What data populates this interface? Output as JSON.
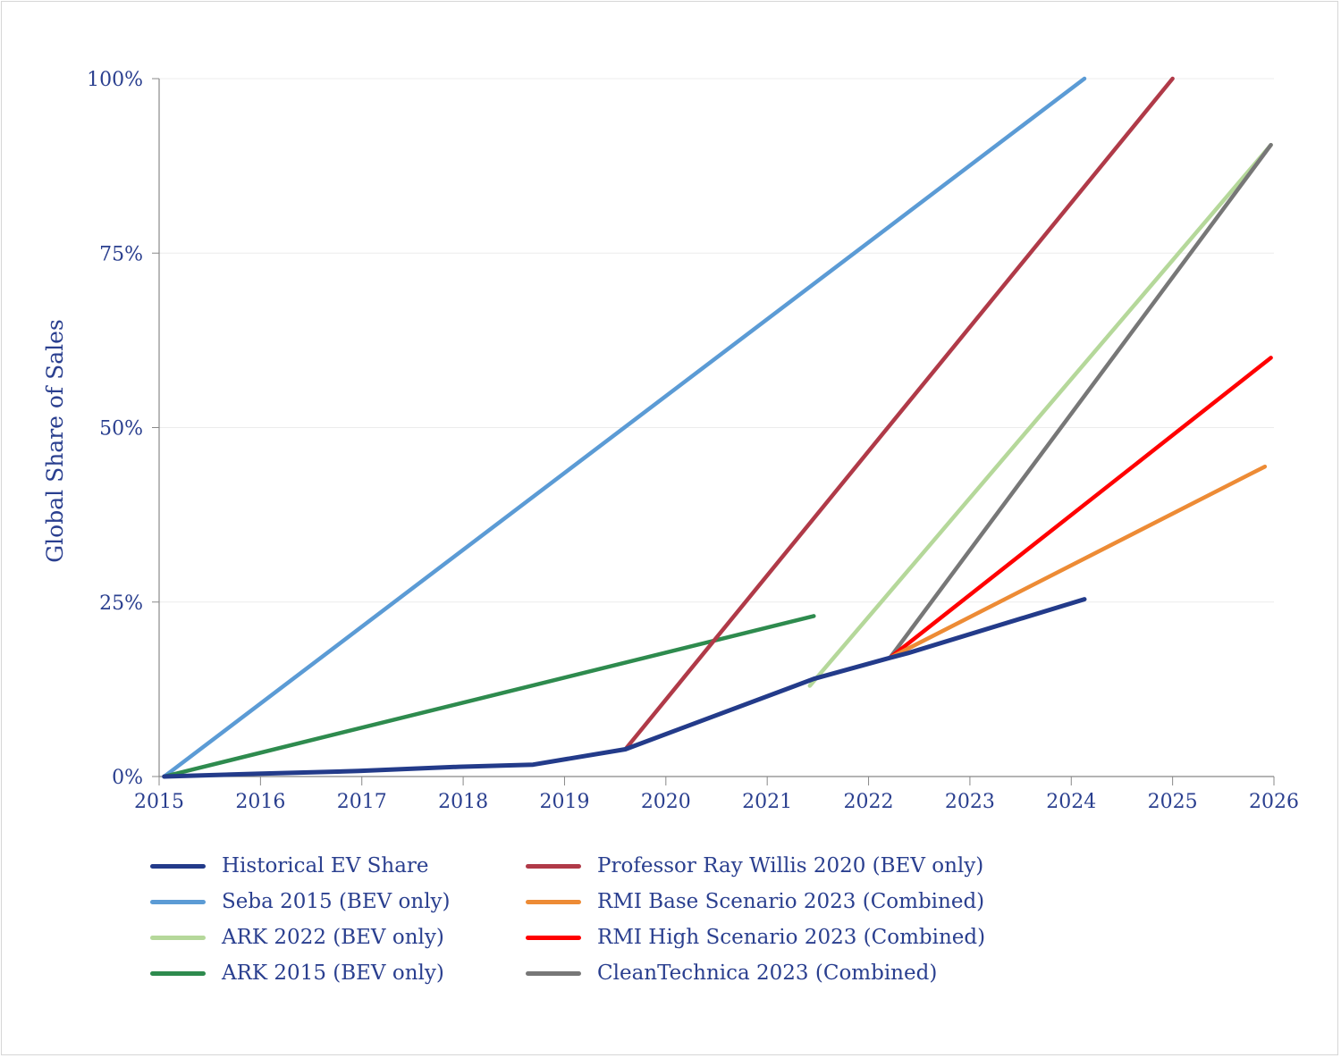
{
  "chart_data": {
    "type": "line",
    "title": "",
    "xlabel": "",
    "ylabel": "Global Share of Sales",
    "xlim": [
      2015,
      2026
    ],
    "ylim": [
      0,
      100
    ],
    "x_ticks": [
      "2015",
      "2016",
      "2017",
      "2018",
      "2019",
      "2020",
      "2021",
      "2022",
      "2023",
      "2024",
      "2025",
      "2026"
    ],
    "y_ticks": [
      "0%",
      "25%",
      "50%",
      "75%",
      "100%"
    ],
    "grid": "horizontal",
    "legend_position": "bottom",
    "series": [
      {
        "name": "Historical EV Share",
        "color": "#233b8a",
        "x": [
          2015.05,
          2015.97,
          2016.97,
          2017.96,
          2018.69,
          2019.6,
          2021.46,
          2022.21,
          2022.39,
          2024.13
        ],
        "y": [
          0,
          0.4,
          0.8,
          1.4,
          1.7,
          3.9,
          14.0,
          17.0,
          17.7,
          25.4
        ]
      },
      {
        "name": "Seba 2015 (BEV only)",
        "color": "#5b9bd5",
        "x": [
          2015.05,
          2024.13
        ],
        "y": [
          0,
          100
        ]
      },
      {
        "name": "ARK 2022 (BEV only)",
        "color": "#b5d89a",
        "x": [
          2021.42,
          2025.97
        ],
        "y": [
          13,
          90.5
        ]
      },
      {
        "name": "ARK 2015 (BEV only)",
        "color": "#2e8b4e",
        "x": [
          2015.05,
          2021.46
        ],
        "y": [
          0,
          23
        ]
      },
      {
        "name": "Professor Ray Willis 2020 (BEV only)",
        "color": "#b03a48",
        "x": [
          2019.6,
          2025.0
        ],
        "y": [
          3.9,
          100
        ]
      },
      {
        "name": "RMI Base Scenario 2023 (Combined)",
        "color": "#ed8b35",
        "x": [
          2022.21,
          2025.91
        ],
        "y": [
          17,
          44.4
        ]
      },
      {
        "name": "RMI High Scenario 2023 (Combined)",
        "color": "#ff0000",
        "x": [
          2022.21,
          2025.97
        ],
        "y": [
          17,
          60
        ]
      },
      {
        "name": "CleanTechnica  2023 (Combined)",
        "color": "#777777",
        "x": [
          2022.21,
          2025.97
        ],
        "y": [
          17,
          90.5
        ]
      }
    ]
  }
}
